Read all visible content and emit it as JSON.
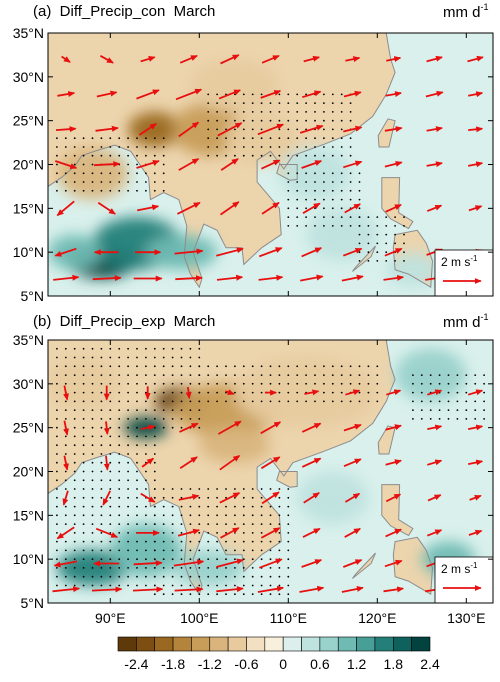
{
  "chart_data": [
    {
      "type": "heatmap",
      "title": "(a)  Diff_Precip_con  March",
      "units_base": "mm d",
      "units_exp": "-1",
      "xlim": [
        83,
        133
      ],
      "ylim": [
        5,
        35
      ],
      "x_ticks": [
        "90°E",
        "100°E",
        "110°E",
        "120°E",
        "130°E"
      ],
      "y_ticks": [
        "35°N",
        "30°N",
        "25°N",
        "20°N",
        "15°N",
        "10°N",
        "5°N"
      ],
      "reference_vector": {
        "base": "2 m s",
        "exp": "-1",
        "u": 2,
        "v": 0
      },
      "precip_anomalies": [
        {
          "lon": 95,
          "lat": 24,
          "value": -1.8,
          "rx": 3,
          "ry": 2
        },
        {
          "lon": 101,
          "lat": 24,
          "value": -1.2,
          "rx": 4,
          "ry": 3
        },
        {
          "lon": 107,
          "lat": 23,
          "value": -0.6,
          "rx": 4,
          "ry": 3
        },
        {
          "lon": 88,
          "lat": 19,
          "value": -0.9,
          "rx": 4,
          "ry": 3
        },
        {
          "lon": 104,
          "lat": 29,
          "value": -0.6,
          "rx": 5,
          "ry": 3
        },
        {
          "lon": 89,
          "lat": 9,
          "value": 2.4,
          "rx": 4,
          "ry": 2
        },
        {
          "lon": 93,
          "lat": 11,
          "value": 1.8,
          "rx": 5,
          "ry": 3
        },
        {
          "lon": 98,
          "lat": 10,
          "value": 1.4,
          "rx": 4,
          "ry": 2
        },
        {
          "lon": 86,
          "lat": 10,
          "value": 1.2,
          "rx": 3,
          "ry": 2
        },
        {
          "lon": 113,
          "lat": 19,
          "value": 0.6,
          "rx": 4,
          "ry": 3
        },
        {
          "lon": 116,
          "lat": 12,
          "value": 0.6,
          "rx": 4,
          "ry": 3
        },
        {
          "lon": 124,
          "lat": 8,
          "value": 0.6,
          "rx": 3,
          "ry": 2
        }
      ],
      "wind_rows": [
        {
          "lat": 32,
          "u": [
            0.6,
            0.9,
            1.0,
            1.2,
            1.3,
            1.2,
            1.1,
            1.0,
            1.0,
            1.1,
            1.1
          ],
          "v": [
            -0.4,
            -0.5,
            0.3,
            0.5,
            0.6,
            0.5,
            0.3,
            0.2,
            0.2,
            0.3,
            0.3
          ]
        },
        {
          "lat": 28,
          "u": [
            1.2,
            1.4,
            1.6,
            1.8,
            1.5,
            1.4,
            1.3,
            1.2,
            1.1,
            1.2,
            1.0
          ],
          "v": [
            0.2,
            0.3,
            0.6,
            0.7,
            0.6,
            0.5,
            0.4,
            0.3,
            0.2,
            0.3,
            0.2
          ]
        },
        {
          "lat": 24,
          "u": [
            1.4,
            1.6,
            1.2,
            1.4,
            1.7,
            1.8,
            1.6,
            1.3,
            1.2,
            1.1,
            1.0
          ],
          "v": [
            0.1,
            0.2,
            0.8,
            1.0,
            0.9,
            0.7,
            0.5,
            0.3,
            0.2,
            0.2,
            0.1
          ]
        },
        {
          "lat": 20,
          "u": [
            1.5,
            1.8,
            1.6,
            1.4,
            1.2,
            1.3,
            1.4,
            1.3,
            1.2,
            1.1,
            1.0
          ],
          "v": [
            -0.5,
            0.1,
            0.5,
            0.8,
            0.8,
            0.6,
            0.5,
            0.4,
            0.3,
            0.2,
            0.2
          ]
        },
        {
          "lat": 15,
          "u": [
            -1.2,
            1.2,
            1.5,
            1.6,
            1.3,
            1.2,
            1.2,
            1.1,
            1.1,
            1.0,
            0.9
          ],
          "v": [
            -1.0,
            -0.8,
            0.3,
            0.8,
            0.9,
            0.8,
            0.7,
            0.6,
            0.5,
            0.4,
            0.3
          ]
        },
        {
          "lat": 10,
          "u": [
            -1.5,
            -1.7,
            1.8,
            2.0,
            1.9,
            1.6,
            1.4,
            1.3,
            1.2,
            1.1,
            1.0
          ],
          "v": [
            -0.5,
            0.0,
            0.0,
            0.2,
            0.5,
            0.6,
            0.6,
            0.5,
            0.5,
            0.4,
            0.3
          ]
        },
        {
          "lat": 7,
          "u": [
            1.8,
            2.0,
            2.0,
            1.9,
            1.8,
            1.7,
            1.6,
            1.5,
            1.4,
            1.3,
            1.2
          ],
          "v": [
            0.2,
            0.1,
            0.0,
            0.1,
            0.2,
            0.2,
            0.3,
            0.3,
            0.2,
            0.2,
            0.2
          ]
        }
      ],
      "significance_regions": [
        {
          "lon": [
            101,
            117
          ],
          "lat": [
            21,
            28
          ]
        },
        {
          "lon": [
            84,
            96
          ],
          "lat": [
            17,
            23
          ]
        },
        {
          "lon": [
            110,
            118
          ],
          "lat": [
            13,
            19
          ]
        },
        {
          "lon": [
            118,
            123
          ],
          "lat": [
            9,
            14
          ]
        }
      ]
    },
    {
      "type": "heatmap",
      "title": "(b)  Diff_Precip_exp  March",
      "units_base": "mm d",
      "units_exp": "-1",
      "xlim": [
        83,
        133
      ],
      "ylim": [
        5,
        35
      ],
      "x_ticks": [
        "90°E",
        "100°E",
        "110°E",
        "120°E",
        "130°E"
      ],
      "y_ticks": [
        "35°N",
        "30°N",
        "25°N",
        "20°N",
        "15°N",
        "10°N",
        "5°N"
      ],
      "reference_vector": {
        "base": "2 m s",
        "exp": "-1",
        "u": 2,
        "v": 0
      },
      "precip_anomalies": [
        {
          "lon": 98,
          "lat": 28,
          "value": -2.4,
          "rx": 3,
          "ry": 1.5
        },
        {
          "lon": 103,
          "lat": 27,
          "value": -1.2,
          "rx": 6,
          "ry": 3
        },
        {
          "lon": 112,
          "lat": 29,
          "value": -0.6,
          "rx": 8,
          "ry": 4
        },
        {
          "lon": 104,
          "lat": 23,
          "value": -0.9,
          "rx": 4,
          "ry": 2
        },
        {
          "lon": 87,
          "lat": 30,
          "value": -0.6,
          "rx": 4,
          "ry": 3
        },
        {
          "lon": 94,
          "lat": 25,
          "value": 2.4,
          "rx": 2.5,
          "ry": 1.2
        },
        {
          "lon": 88,
          "lat": 9,
          "value": 1.8,
          "rx": 4,
          "ry": 2
        },
        {
          "lon": 94,
          "lat": 11,
          "value": 1.2,
          "rx": 4,
          "ry": 3
        },
        {
          "lon": 101,
          "lat": 9,
          "value": 0.9,
          "rx": 4,
          "ry": 2
        },
        {
          "lon": 126,
          "lat": 31,
          "value": 0.9,
          "rx": 4,
          "ry": 3
        },
        {
          "lon": 128,
          "lat": 10,
          "value": 1.2,
          "rx": 3,
          "ry": 2
        },
        {
          "lon": 115,
          "lat": 17,
          "value": 0.6,
          "rx": 4,
          "ry": 3
        }
      ],
      "wind_rows": [
        {
          "lat": 29,
          "u": [
            0.2,
            0.0,
            0.0,
            0.1,
            0.6,
            0.8,
            1.0,
            1.0,
            1.0,
            1.0,
            1.0
          ],
          "v": [
            -1.0,
            -1.0,
            -0.9,
            -0.8,
            -0.2,
            0.0,
            0.2,
            0.3,
            0.3,
            0.3,
            0.3
          ]
        },
        {
          "lat": 25,
          "u": [
            0.2,
            0.1,
            1.0,
            1.3,
            1.6,
            1.4,
            1.3,
            1.2,
            1.1,
            1.0,
            1.0
          ],
          "v": [
            -1.0,
            -0.9,
            0.2,
            0.6,
            0.9,
            0.8,
            0.6,
            0.4,
            0.3,
            0.2,
            0.2
          ]
        },
        {
          "lat": 21,
          "u": [
            0.2,
            0.1,
            0.8,
            1.2,
            1.4,
            1.3,
            1.3,
            1.2,
            1.1,
            1.0,
            1.0
          ],
          "v": [
            -1.0,
            -1.0,
            0.6,
            0.8,
            1.0,
            0.8,
            0.6,
            0.5,
            0.3,
            0.3,
            0.2
          ]
        },
        {
          "lat": 17,
          "u": [
            -0.3,
            -0.5,
            1.0,
            1.4,
            1.4,
            1.2,
            1.1,
            1.0,
            1.0,
            0.9,
            0.8
          ],
          "v": [
            -1.0,
            -1.0,
            -0.6,
            0.3,
            0.7,
            0.8,
            0.7,
            0.6,
            0.5,
            0.4,
            0.3
          ]
        },
        {
          "lat": 13,
          "u": [
            -1.2,
            1.5,
            1.6,
            1.5,
            1.3,
            1.3,
            1.2,
            1.1,
            1.1,
            1.0,
            0.9
          ],
          "v": [
            -0.8,
            -0.6,
            0.0,
            0.4,
            0.7,
            0.7,
            0.6,
            0.6,
            0.5,
            0.4,
            0.3
          ]
        },
        {
          "lat": 9.5,
          "u": [
            -1.6,
            -1.8,
            2.0,
            2.1,
            1.9,
            1.6,
            1.4,
            1.3,
            1.2,
            1.1,
            1.0
          ],
          "v": [
            -0.3,
            0.0,
            0.1,
            0.3,
            0.5,
            0.6,
            0.5,
            0.5,
            0.4,
            0.4,
            0.3
          ]
        },
        {
          "lat": 6.5,
          "u": [
            1.9,
            2.1,
            2.1,
            2.0,
            1.9,
            1.8,
            1.7,
            1.5,
            1.4,
            1.3,
            1.2
          ],
          "v": [
            0.2,
            0.1,
            0.1,
            0.1,
            0.2,
            0.3,
            0.3,
            0.3,
            0.2,
            0.2,
            0.2
          ]
        }
      ],
      "significance_regions": [
        {
          "lon": [
            84,
            100
          ],
          "lat": [
            25,
            34
          ]
        },
        {
          "lon": [
            100,
            120
          ],
          "lat": [
            28,
            32
          ]
        },
        {
          "lon": [
            84,
            95
          ],
          "lat": [
            7,
            24
          ]
        },
        {
          "lon": [
            95,
            110
          ],
          "lat": [
            6,
            18
          ]
        },
        {
          "lon": [
            124,
            132
          ],
          "lat": [
            26,
            31
          ]
        }
      ]
    }
  ],
  "colorbar": {
    "levels": [
      -2.4,
      -2.1,
      -1.8,
      -1.5,
      -1.2,
      -0.9,
      -0.6,
      -0.3,
      0,
      0.3,
      0.6,
      0.9,
      1.2,
      1.5,
      1.8,
      2.1,
      2.4
    ],
    "labels": [
      "-2.4",
      "-1.8",
      "-1.2",
      "-0.6",
      "0",
      "0.6",
      "1.2",
      "1.8",
      "2.4"
    ],
    "colors": [
      "#5e3a0a",
      "#7d4e12",
      "#9a6820",
      "#b3843a",
      "#c89d5a",
      "#d9b57d",
      "#e7cb9f",
      "#f3e0c2",
      "#f8efdc",
      "#dcefec",
      "#bfe3df",
      "#99d1cb",
      "#6fbab3",
      "#479f98",
      "#247f7a",
      "#0e615c",
      "#02433f"
    ]
  },
  "colors": {
    "ocean": "#d9f0ec",
    "land": "#ecd4ad",
    "wind_arrow": "#e8100f",
    "coastline": "#8c8c8c"
  }
}
